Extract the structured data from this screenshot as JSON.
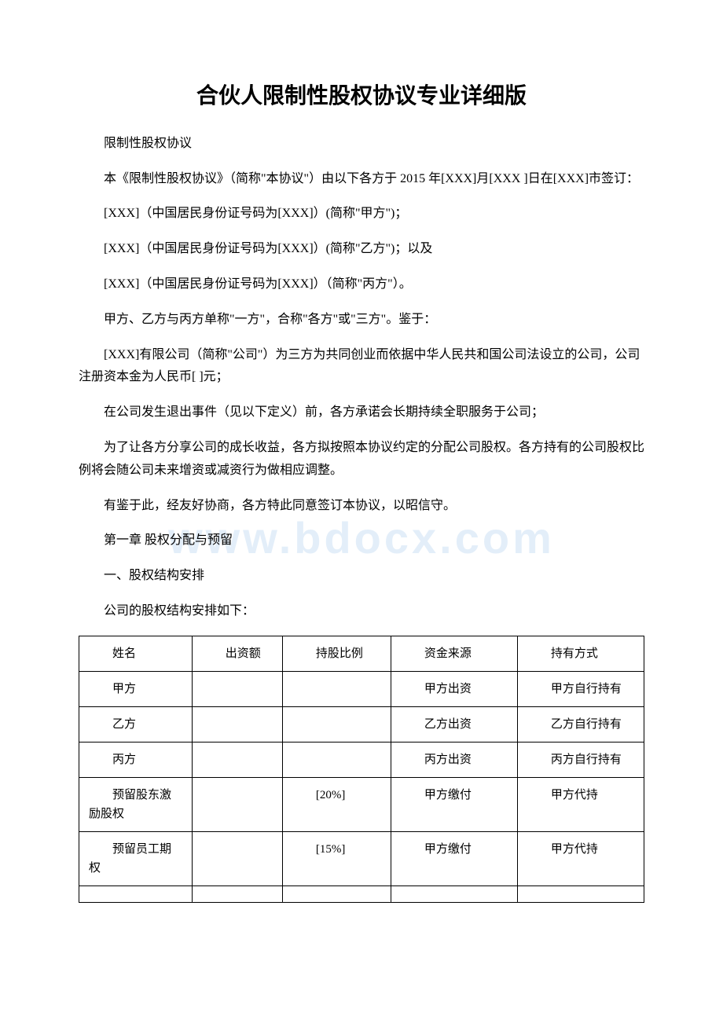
{
  "watermark_text": "www.bdocx.com",
  "title": "合伙人限制性股权协议专业详细版",
  "paragraphs": [
    "限制性股权协议",
    "本《限制性股权协议》（简称\"本协议\"）由以下各方于 2015 年[XXX]月[XXX ]日在[XXX]市签订：",
    "[XXX]（中国居民身份证号码为[XXX]）(简称\"甲方\")；",
    "[XXX]（中国居民身份证号码为[XXX]）(简称\"乙方\")；以及",
    "[XXX]（中国居民身份证号码为[XXX]）（简称\"丙方\"）。",
    "甲方、乙方与丙方单称\"一方\"，合称\"各方\"或\"三方\"。鉴于：",
    "[XXX]有限公司（简称\"公司\"）为三方为共同创业而依据中华人民共和国公司法设立的公司，公司注册资本金为人民币[ ]元；",
    "在公司发生退出事件（见以下定义）前，各方承诺会长期持续全职服务于公司；",
    "为了让各方分享公司的成长收益，各方拟按照本协议约定的分配公司股权。各方持有的公司股权比例将会随公司未来增资或减资行为做相应调整。",
    "有鉴于此，经友好协商，各方特此同意签订本协议，以昭信守。",
    "第一章 股权分配与预留",
    "一、股权结构安排",
    "公司的股权结构安排如下："
  ],
  "table": {
    "columns": [
      "姓名",
      "出资额",
      "持股比例",
      "资金来源",
      "持有方式"
    ],
    "rows": [
      {
        "name": "甲方",
        "amount": "",
        "ratio": "",
        "source": "甲方出资",
        "hold": "甲方自行持有"
      },
      {
        "name": "乙方",
        "amount": "",
        "ratio": "",
        "source": "乙方出资",
        "hold": "乙方自行持有"
      },
      {
        "name": "丙方",
        "amount": "",
        "ratio": "",
        "source": "丙方出资",
        "hold": "丙方自行持有"
      },
      {
        "name": "预留股东激励股权",
        "amount": "",
        "ratio": "[20%]",
        "source": "甲方缴付",
        "hold": "甲方代持"
      },
      {
        "name": "预留员工期权",
        "amount": "",
        "ratio": "[15%]",
        "source": "甲方缴付",
        "hold": "甲方代持"
      },
      {
        "name": "",
        "amount": "",
        "ratio": "",
        "source": "",
        "hold": ""
      }
    ],
    "border_color": "#000000",
    "cell_padding": 10,
    "font_size": 15
  },
  "colors": {
    "text": "#000000",
    "background": "#ffffff",
    "watermark": "rgba(100, 160, 220, 0.18)"
  },
  "typography": {
    "title_fontsize": 28,
    "body_fontsize": 16,
    "table_fontsize": 15,
    "title_family": "SimHei",
    "body_family": "SimSun"
  }
}
